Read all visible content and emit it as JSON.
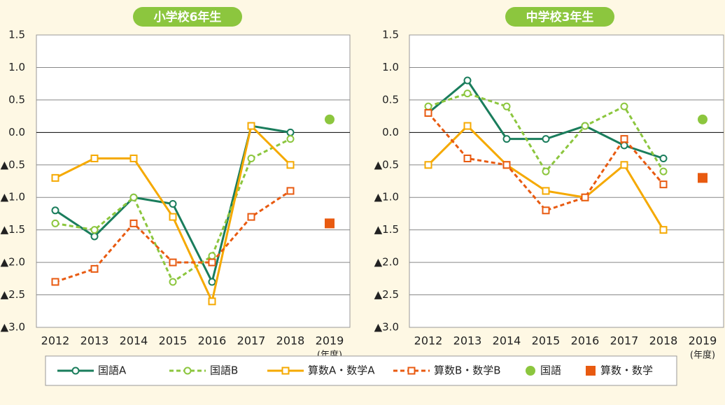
{
  "legend": [
    {
      "name": "国語A",
      "color": "#1a7d5c",
      "dash": false,
      "marker": "circle",
      "line": true
    },
    {
      "name": "国語B",
      "color": "#8cc63e",
      "dash": true,
      "marker": "circle",
      "line": true
    },
    {
      "name": "算数A・数学A",
      "color": "#f5a900",
      "dash": false,
      "marker": "square",
      "line": true
    },
    {
      "name": "算数B・数学B",
      "color": "#e85a10",
      "dash": true,
      "marker": "square",
      "line": true
    },
    {
      "name": "国語",
      "color": "#8cc63e",
      "dash": false,
      "marker": "dot",
      "line": false
    },
    {
      "name": "算数・数学",
      "color": "#e85a10",
      "dash": false,
      "marker": "block",
      "line": false
    }
  ],
  "unit_label": "(年度)",
  "chart_data": [
    {
      "type": "line",
      "title": "小学校6年生",
      "categories": [
        "2012",
        "2013",
        "2014",
        "2015",
        "2016",
        "2017",
        "2018",
        "2019"
      ],
      "ylim": [
        -3.0,
        1.5
      ],
      "yticks": [
        {
          "value": -3.0,
          "label": "▲3.0"
        },
        {
          "value": -2.5,
          "label": "▲2.5"
        },
        {
          "value": -2.0,
          "label": "▲2.0"
        },
        {
          "value": -1.5,
          "label": "▲1.5"
        },
        {
          "value": -1.0,
          "label": "▲1.0"
        },
        {
          "value": -0.5,
          "label": "▲0.5"
        },
        {
          "value": 0.0,
          "label": "0.0"
        },
        0.5,
        {
          "value": 1.0,
          "label": "1.0"
        },
        1.5
      ],
      "grid": true,
      "series": [
        {
          "values": [
            -1.2,
            -1.6,
            -1.0,
            -1.1,
            -2.3,
            0.1,
            0.0,
            null
          ]
        },
        {
          "values": [
            -1.4,
            -1.5,
            -1.0,
            -2.3,
            -1.9,
            -0.4,
            -0.1,
            null
          ]
        },
        {
          "values": [
            -0.7,
            -0.4,
            -0.4,
            -1.3,
            -2.6,
            0.1,
            -0.5,
            null
          ]
        },
        {
          "values": [
            -2.3,
            -2.1,
            -1.4,
            -2.0,
            -2.0,
            -1.3,
            -0.9,
            null
          ]
        },
        {
          "values": [
            null,
            null,
            null,
            null,
            null,
            null,
            null,
            0.2
          ]
        },
        {
          "values": [
            null,
            null,
            null,
            null,
            null,
            null,
            null,
            -1.4
          ]
        }
      ]
    },
    {
      "type": "line",
      "title": "中学校3年生",
      "categories": [
        "2012",
        "2013",
        "2014",
        "2015",
        "2016",
        "2017",
        "2018",
        "2019"
      ],
      "ylim": [
        -3.0,
        1.5
      ],
      "yticks": [
        {
          "value": -3.0,
          "label": "▲3.0"
        },
        {
          "value": -2.5,
          "label": "▲2.5"
        },
        {
          "value": -2.0,
          "label": "▲2.0"
        },
        {
          "value": -1.5,
          "label": "▲1.5"
        },
        {
          "value": -1.0,
          "label": "▲1.0"
        },
        {
          "value": -0.5,
          "label": "▲0.5"
        },
        {
          "value": 0.0,
          "label": "0.0"
        },
        0.5,
        {
          "value": 1.0,
          "label": "1.0"
        },
        1.5
      ],
      "grid": true,
      "series": [
        {
          "values": [
            0.3,
            0.8,
            -0.1,
            -0.1,
            0.1,
            -0.2,
            -0.4,
            null
          ]
        },
        {
          "values": [
            0.4,
            0.6,
            0.4,
            -0.6,
            0.1,
            0.4,
            -0.6,
            null
          ]
        },
        {
          "values": [
            -0.5,
            0.1,
            -0.5,
            -0.9,
            -1.0,
            -0.5,
            -1.5,
            null
          ]
        },
        {
          "values": [
            0.3,
            -0.4,
            -0.5,
            -1.2,
            -1.0,
            -0.1,
            -0.8,
            null
          ]
        },
        {
          "values": [
            null,
            null,
            null,
            null,
            null,
            null,
            null,
            0.2
          ]
        },
        {
          "values": [
            null,
            null,
            null,
            null,
            null,
            null,
            null,
            -0.7
          ]
        }
      ]
    }
  ]
}
